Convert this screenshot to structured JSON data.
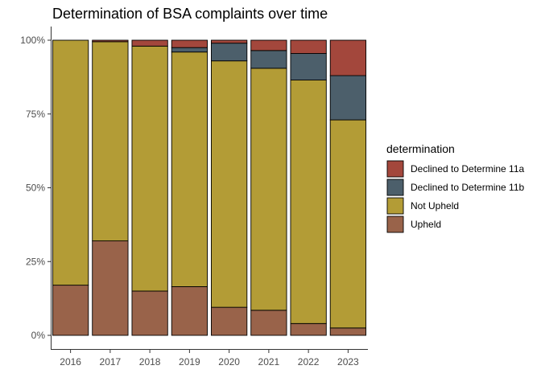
{
  "chart_data": {
    "type": "bar",
    "stacked": "percent",
    "title": "Determination of BSA complaints over time",
    "xlabel": "",
    "ylabel": "",
    "categories": [
      "2016",
      "2017",
      "2018",
      "2019",
      "2020",
      "2021",
      "2022",
      "2023"
    ],
    "yticks": [
      "0%",
      "25%",
      "50%",
      "75%",
      "100%"
    ],
    "ylim": [
      0,
      1
    ],
    "grid": false,
    "legend": {
      "title": "determination",
      "position": "right",
      "entries": [
        "Declined to Determine 11a",
        "Declined to Determine 11b",
        "Not Upheld",
        "Upheld"
      ]
    },
    "series": [
      {
        "name": "Upheld",
        "color": "#99634a",
        "values": [
          0.17,
          0.32,
          0.15,
          0.165,
          0.095,
          0.085,
          0.04,
          0.025
        ]
      },
      {
        "name": "Not Upheld",
        "color": "#b39c36",
        "values": [
          0.83,
          0.675,
          0.83,
          0.795,
          0.835,
          0.82,
          0.825,
          0.705
        ]
      },
      {
        "name": "Declined to Determine 11b",
        "color": "#4c5f6b",
        "values": [
          0.0,
          0.0,
          0.0,
          0.015,
          0.06,
          0.06,
          0.09,
          0.15
        ]
      },
      {
        "name": "Declined to Determine 11a",
        "color": "#a3473c",
        "values": [
          0.0,
          0.005,
          0.02,
          0.025,
          0.01,
          0.035,
          0.045,
          0.12
        ]
      }
    ]
  }
}
